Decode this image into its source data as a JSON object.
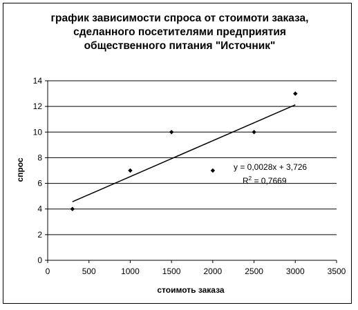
{
  "chart_data": {
    "type": "scatter",
    "title_lines": [
      "график зависимости спроса от стоимоти заказа,",
      "сделанного посетителями предприятия",
      "общественного питания \"Источник\""
    ],
    "xlabel": "стоимоть заказа",
    "ylabel": "спрос",
    "xlim": [
      0,
      3500
    ],
    "ylim": [
      0,
      14
    ],
    "xticks": [
      0,
      500,
      1000,
      1500,
      2000,
      2500,
      3000,
      3500
    ],
    "yticks": [
      0,
      2,
      4,
      6,
      8,
      10,
      12,
      14
    ],
    "grid": "horizontal",
    "legend": "none",
    "points": [
      {
        "x": 300,
        "y": 4
      },
      {
        "x": 1000,
        "y": 7
      },
      {
        "x": 1500,
        "y": 10
      },
      {
        "x": 2000,
        "y": 7
      },
      {
        "x": 2500,
        "y": 10
      },
      {
        "x": 3000,
        "y": 13
      }
    ],
    "trendline": {
      "type": "linear",
      "slope": 0.0028,
      "intercept": 3.726,
      "x_range": [
        300,
        3000
      ],
      "equation_label": "y = 0,0028x + 3,726",
      "r2_prefix": "R",
      "r2_superscript": "2",
      "r2_suffix": " = 0,7669"
    },
    "colors": {
      "marker": "#000000",
      "line": "#000000",
      "grid": "#000000"
    }
  }
}
